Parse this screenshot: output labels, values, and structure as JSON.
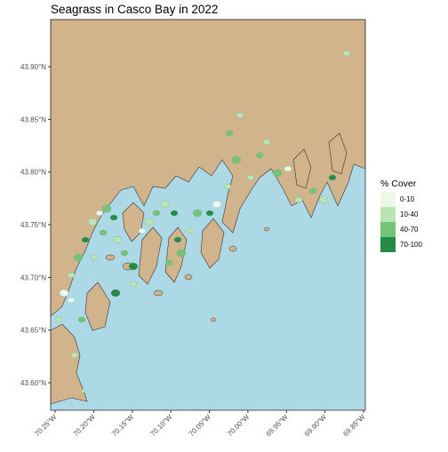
{
  "chart_data": {
    "type": "map",
    "title": "Seagrass in Casco Bay in 2022",
    "xlim": [
      -70.2558,
      -69.8477
    ],
    "ylim": [
      43.5739,
      43.9447
    ],
    "xticks": [
      {
        "value": -70.25,
        "label": "70.25°W"
      },
      {
        "value": -70.2,
        "label": "70.20°W"
      },
      {
        "value": -70.15,
        "label": "70.15°W"
      },
      {
        "value": -70.1,
        "label": "70.10°W"
      },
      {
        "value": -70.05,
        "label": "70.05°W"
      },
      {
        "value": -70.0,
        "label": "70.00°W"
      },
      {
        "value": -69.95,
        "label": "69.95°W"
      },
      {
        "value": -69.9,
        "label": "69.90°W"
      },
      {
        "value": -69.85,
        "label": "69.85°W"
      }
    ],
    "yticks": [
      {
        "value": 43.6,
        "label": "43.60°N"
      },
      {
        "value": 43.65,
        "label": "43.65°N"
      },
      {
        "value": 43.7,
        "label": "43.70°N"
      },
      {
        "value": 43.75,
        "label": "43.75°N"
      },
      {
        "value": 43.8,
        "label": "43.80°N"
      },
      {
        "value": 43.85,
        "label": "43.85°N"
      },
      {
        "value": 43.9,
        "label": "43.90°N"
      }
    ],
    "legend_title": "% Cover",
    "classes": [
      {
        "name": "0-10",
        "color": "#edf8e9"
      },
      {
        "name": "10-40",
        "color": "#bae4b3"
      },
      {
        "name": "40-70",
        "color": "#74c476"
      },
      {
        "name": "70-100",
        "color": "#238b45"
      }
    ],
    "water_color": "#add8e6",
    "land_color": "#d2b48c"
  }
}
